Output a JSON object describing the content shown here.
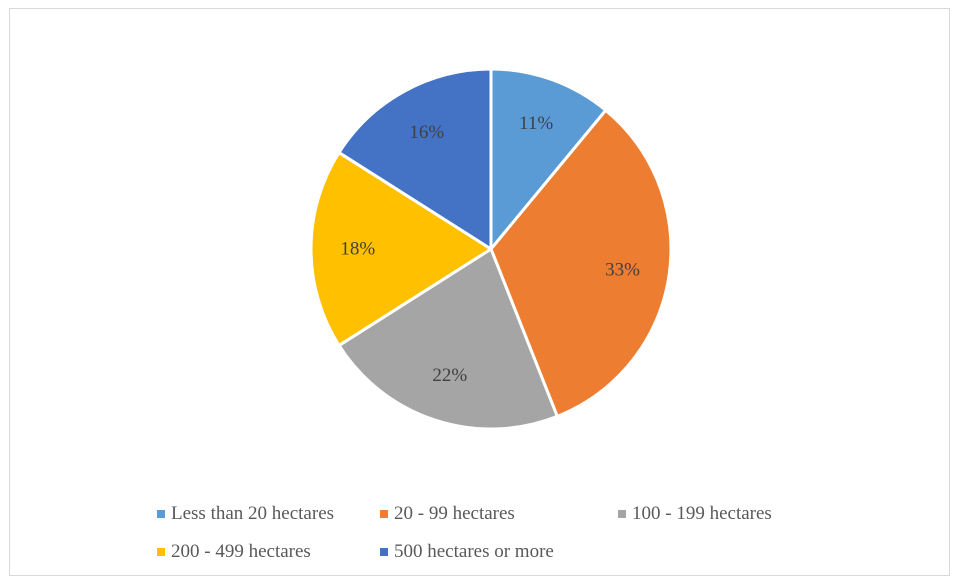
{
  "chart_data": {
    "type": "pie",
    "title": "",
    "legend_position": "bottom",
    "slices": [
      {
        "label": "Less than 20 hectares",
        "value": 11,
        "display": "11%",
        "color": "#5B9BD5"
      },
      {
        "label": "20 - 99 hectares",
        "value": 33,
        "display": "33%",
        "color": "#ED7D31"
      },
      {
        "label": "100 - 199 hectares",
        "value": 22,
        "display": "22%",
        "color": "#A5A5A5"
      },
      {
        "label": "200 - 499 hectares",
        "value": 18,
        "display": "18%",
        "color": "#FFC000"
      },
      {
        "label": "500 hectares or more",
        "value": 16,
        "display": "16%",
        "color": "#4472C4"
      }
    ]
  }
}
